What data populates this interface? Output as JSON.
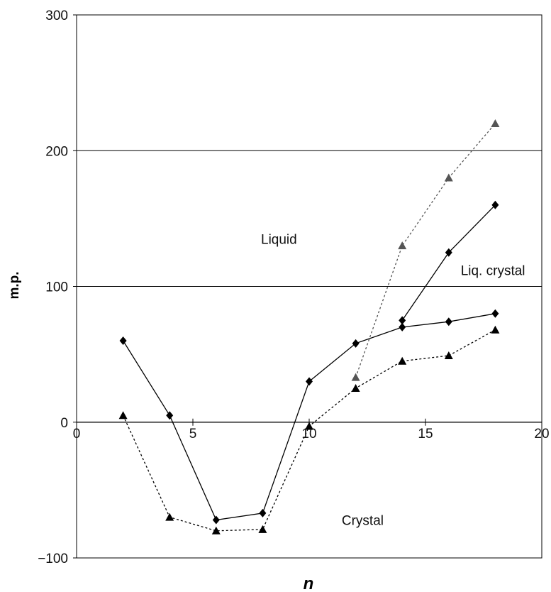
{
  "chart_data": {
    "type": "line",
    "xlabel": "n",
    "ylabel": "m.p.",
    "xlim": [
      0,
      20
    ],
    "ylim": [
      -100,
      300
    ],
    "x_ticks": [
      0,
      5,
      10,
      15,
      20
    ],
    "y_ticks": [
      -100,
      0,
      100,
      200,
      300
    ],
    "x_tick_labels": [
      "0",
      "5",
      "10",
      "15",
      "20"
    ],
    "y_tick_labels": [
      "−100",
      "0",
      "100",
      "200",
      "300"
    ],
    "grid": "horizontal major gridlines",
    "legend": "none",
    "annotations": [
      {
        "text": "Liquid",
        "x": 8.7,
        "y": 135
      },
      {
        "text": "Liq. crystal",
        "x": 17.9,
        "y": 112
      },
      {
        "text": "Crystal",
        "x": 12.3,
        "y": -72
      }
    ],
    "series": [
      {
        "style": "solid",
        "marker": "diamond",
        "color": "#000000",
        "x": [
          2,
          4,
          6,
          8,
          10,
          12,
          14,
          16,
          18
        ],
        "y": [
          60,
          5,
          -72,
          -67,
          30,
          58,
          70,
          74,
          80
        ]
      },
      {
        "style": "solid",
        "marker": "diamond",
        "color": "#000000",
        "x": [
          14,
          16,
          18
        ],
        "y": [
          75,
          125,
          160
        ]
      },
      {
        "style": "dashed",
        "marker": "triangle",
        "color": "#000000",
        "x": [
          2,
          4,
          6,
          8,
          10,
          12,
          14,
          16,
          18
        ],
        "y": [
          5,
          -70,
          -80,
          -79,
          -3,
          25,
          45,
          49,
          68
        ]
      },
      {
        "style": "dashed",
        "marker": "triangle",
        "color": "#555555",
        "x": [
          12,
          14,
          16,
          18
        ],
        "y": [
          33,
          130,
          180,
          220
        ]
      }
    ]
  }
}
